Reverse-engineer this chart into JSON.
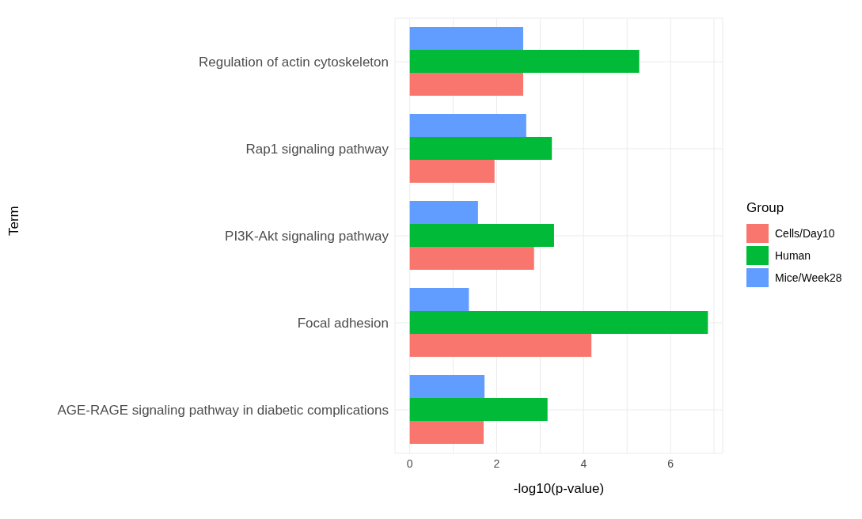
{
  "chart_data": {
    "type": "bar",
    "orientation": "horizontal",
    "xlabel": "-log10(p-value)",
    "ylabel": "Term",
    "legend_title": "Group",
    "legend": "right",
    "grid": true,
    "categories": [
      "Regulation of actin cytoskeleton",
      "Rap1 signaling pathway",
      "PI3K-Akt signaling pathway",
      "Focal adhesion",
      "AGE-RAGE signaling pathway in diabetic complications"
    ],
    "series": [
      {
        "name": "Cells/Day10",
        "color": "#f8766d",
        "values": [
          2.61,
          1.95,
          2.86,
          4.18,
          1.7
        ]
      },
      {
        "name": "Human",
        "color": "#00ba38",
        "values": [
          5.28,
          3.27,
          3.32,
          6.86,
          3.17
        ]
      },
      {
        "name": "Mice/Week28",
        "color": "#619cff",
        "values": [
          2.61,
          2.68,
          1.57,
          1.36,
          1.72
        ]
      }
    ],
    "xlim": [
      -0.34,
      7.2
    ],
    "xticks": [
      0,
      {
        "value": 1,
        "label": null
      },
      2,
      {
        "value": 3,
        "label": null
      },
      4,
      {
        "value": 5,
        "label": null
      },
      6,
      {
        "value": 7,
        "label": null
      }
    ]
  }
}
